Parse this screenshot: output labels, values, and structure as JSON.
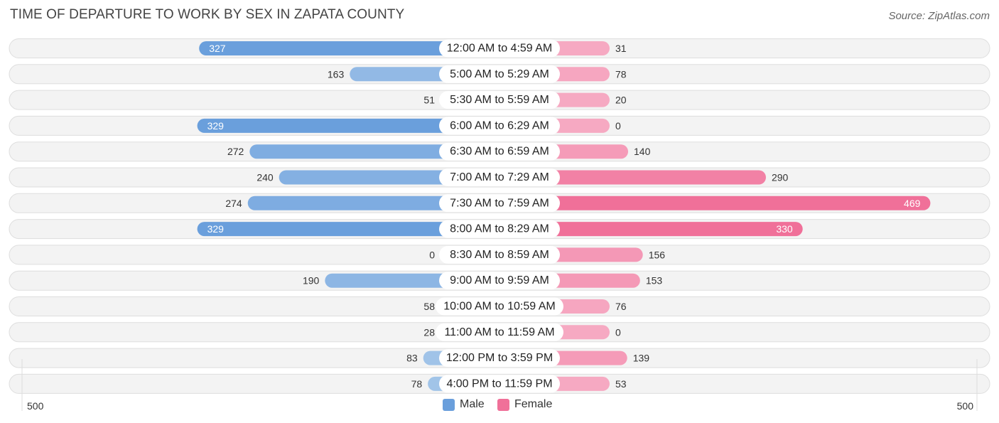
{
  "title": "TIME OF DEPARTURE TO WORK BY SEX IN ZAPATA COUNTY",
  "source": "Source: ZipAtlas.com",
  "colors": {
    "male_strong": "#6a9fdc",
    "male_light": "#a8c8ea",
    "female_strong": "#f07099",
    "female_light": "#f6a9c2"
  },
  "legend": {
    "male": "Male",
    "female": "Female"
  },
  "chart_data": {
    "type": "bar",
    "orientation": "horizontal-diverging",
    "title": "TIME OF DEPARTURE TO WORK BY SEX IN ZAPATA COUNTY",
    "categories": [
      "12:00 AM to 4:59 AM",
      "5:00 AM to 5:29 AM",
      "5:30 AM to 5:59 AM",
      "6:00 AM to 6:29 AM",
      "6:30 AM to 6:59 AM",
      "7:00 AM to 7:29 AM",
      "7:30 AM to 7:59 AM",
      "8:00 AM to 8:29 AM",
      "8:30 AM to 8:59 AM",
      "9:00 AM to 9:59 AM",
      "10:00 AM to 10:59 AM",
      "11:00 AM to 11:59 AM",
      "12:00 PM to 3:59 PM",
      "4:00 PM to 11:59 PM"
    ],
    "series": [
      {
        "name": "Male",
        "values": [
          327,
          163,
          51,
          329,
          272,
          240,
          274,
          329,
          0,
          190,
          58,
          28,
          83,
          78
        ]
      },
      {
        "name": "Female",
        "values": [
          31,
          78,
          20,
          0,
          140,
          290,
          469,
          330,
          156,
          153,
          76,
          0,
          139,
          53
        ]
      }
    ],
    "axis_max": 500,
    "axis_labels": {
      "left": "500",
      "right": "500"
    },
    "legend_position": "bottom-center"
  }
}
